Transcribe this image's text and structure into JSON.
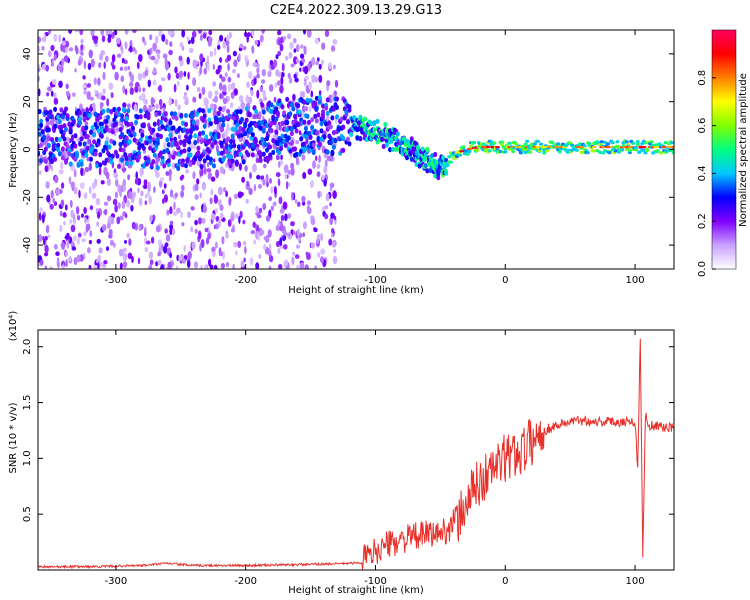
{
  "title": "C2E4.2022.309.13.29.G13",
  "chart_data": [
    {
      "type": "heatmap",
      "xlabel": "Height of straight line (km)",
      "ylabel": "Frequency (Hz)",
      "xlim": [
        -360,
        130
      ],
      "ylim": [
        -50,
        50
      ],
      "xticks": [
        -300,
        -200,
        -100,
        0,
        100
      ],
      "yticks": [
        -40,
        -20,
        0,
        20,
        40
      ],
      "colorbar": {
        "label": "Normalized spectral amplitude",
        "range": [
          0,
          1
        ],
        "ticks": [
          "0.0",
          "0.2",
          "0.4",
          "0.6",
          "0.8"
        ],
        "colors": [
          "#ffffff",
          "#c8a0ff",
          "#8000ff",
          "#0000ff",
          "#00c8ff",
          "#00ff80",
          "#80ff00",
          "#ffff00",
          "#ff8000",
          "#ff0000",
          "#ff0060"
        ]
      },
      "ridge": {
        "x": [
          -330,
          -300,
          -250,
          -200,
          -170,
          -140,
          -120,
          -100,
          -80,
          -60,
          -50,
          -45,
          -40,
          -30,
          -20,
          -10,
          0,
          50,
          100,
          130
        ],
        "y": [
          5,
          5,
          4,
          6,
          9,
          10,
          10,
          8,
          2,
          -4,
          -8,
          -5,
          -2,
          0,
          1,
          1,
          1,
          1,
          1,
          1
        ]
      }
    },
    {
      "type": "line",
      "xlabel": "Height of straight line (km)",
      "ylabel": "SNR (10 * v/v)",
      "yscale_label": "(x10⁴)",
      "xlim": [
        -360,
        130
      ],
      "ylim": [
        0,
        2.15
      ],
      "xticks": [
        -300,
        -200,
        -100,
        0,
        100
      ],
      "yticks": [
        "0.5",
        "1.0",
        "1.5",
        "2.0"
      ],
      "series": [
        {
          "color": "#e8302a",
          "x": [
            -360,
            -320,
            -280,
            -260,
            -240,
            -200,
            -150,
            -120,
            -105,
            -100,
            -90,
            -80,
            -70,
            -60,
            -50,
            -40,
            -30,
            -25,
            -20,
            -10,
            0,
            10,
            20,
            30,
            40,
            50,
            60,
            70,
            80,
            90,
            100,
            102,
            104,
            106,
            108,
            110,
            120,
            130
          ],
          "y": [
            0.03,
            0.03,
            0.04,
            0.06,
            0.04,
            0.04,
            0.05,
            0.06,
            0.07,
            0.12,
            0.18,
            0.22,
            0.25,
            0.27,
            0.28,
            0.35,
            0.6,
            0.72,
            0.78,
            0.9,
            1.0,
            1.05,
            1.15,
            1.25,
            1.3,
            1.33,
            1.34,
            1.33,
            1.33,
            1.33,
            1.33,
            0.9,
            2.1,
            0.1,
            1.4,
            1.3,
            1.28,
            1.28
          ]
        }
      ]
    }
  ]
}
